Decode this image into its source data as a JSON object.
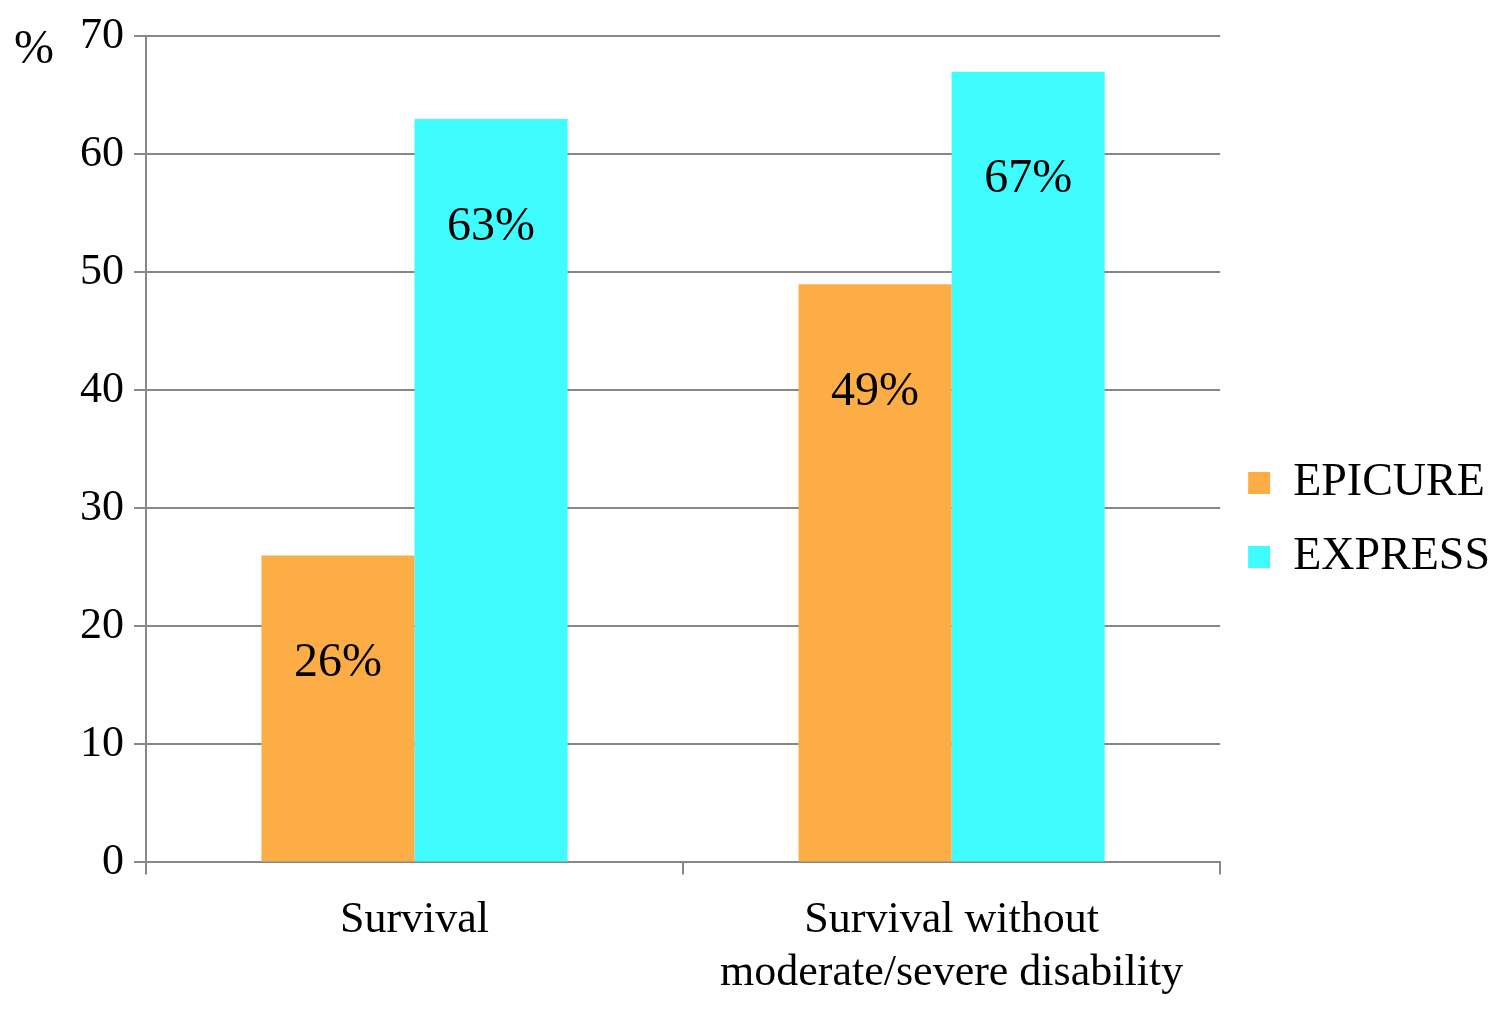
{
  "chart_data": {
    "type": "bar",
    "ylabel": "%",
    "categories": [
      "Survival",
      "Survival without moderate/severe disability"
    ],
    "series": [
      {
        "name": "EPICURE",
        "color": "#fcad45",
        "values": [
          26,
          49
        ],
        "value_labels": [
          "26%",
          "49%"
        ]
      },
      {
        "name": "EXPRESS",
        "color": "#3ffcff",
        "values": [
          63,
          67
        ],
        "value_labels": [
          "63%",
          "67%"
        ]
      }
    ],
    "ylim": [
      0,
      70
    ],
    "yticks": [
      0,
      10,
      20,
      30,
      40,
      50,
      60,
      70
    ],
    "grid": "y",
    "legend": "right"
  }
}
